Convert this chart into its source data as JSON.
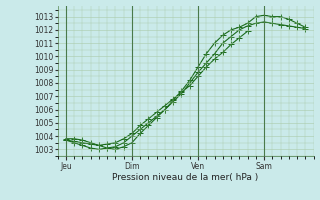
{
  "background_color": "#caeaea",
  "plot_bg_color": "#caeaea",
  "grid_color": "#aacaaa",
  "line_color": "#1a6b1a",
  "marker_color": "#1a6b1a",
  "xlabel": "Pression niveau de la mer( hPa )",
  "ylim": [
    1002.5,
    1013.8
  ],
  "yticks": [
    1003,
    1004,
    1005,
    1006,
    1007,
    1008,
    1009,
    1010,
    1011,
    1012,
    1013
  ],
  "xtick_labels": [
    "Jeu",
    "Dim",
    "Ven",
    "Sam"
  ],
  "xtick_positions": [
    0,
    24,
    48,
    72
  ],
  "xlim": [
    -3,
    90
  ],
  "vline_positions": [
    0,
    24,
    48,
    72
  ],
  "series1_x": [
    0,
    3,
    6,
    9,
    12,
    15,
    18,
    21,
    24,
    27,
    30,
    33,
    36,
    39,
    42,
    45,
    48,
    51,
    54,
    57,
    60,
    63,
    66
  ],
  "series1_y": [
    1003.7,
    1003.6,
    1003.5,
    1003.4,
    1003.3,
    1003.4,
    1003.5,
    1003.8,
    1004.2,
    1004.8,
    1005.3,
    1005.8,
    1006.3,
    1006.8,
    1007.3,
    1007.8,
    1008.5,
    1009.2,
    1009.8,
    1010.3,
    1010.9,
    1011.4,
    1011.9
  ],
  "series2_x": [
    0,
    3,
    6,
    9,
    12,
    15,
    18,
    21,
    24,
    27,
    30,
    33,
    36,
    39,
    42,
    45,
    48,
    51,
    54,
    57,
    60,
    63,
    66,
    69,
    72,
    75,
    78,
    81,
    84,
    87
  ],
  "series2_y": [
    1003.8,
    1003.8,
    1003.7,
    1003.5,
    1003.3,
    1003.1,
    1003.0,
    1003.2,
    1003.5,
    1004.2,
    1004.8,
    1005.4,
    1006.0,
    1006.7,
    1007.4,
    1008.2,
    1009.2,
    1010.2,
    1011.0,
    1011.6,
    1012.0,
    1012.2,
    1012.5,
    1013.0,
    1013.1,
    1013.0,
    1013.0,
    1012.8,
    1012.5,
    1012.2
  ],
  "series3_x": [
    0,
    3,
    6,
    9,
    12,
    15,
    18,
    21,
    24,
    27,
    30,
    33,
    36,
    39,
    42,
    45,
    48,
    51,
    54,
    57,
    60,
    63,
    66,
    69,
    72,
    75,
    78,
    81,
    84,
    87
  ],
  "series3_y": [
    1003.7,
    1003.5,
    1003.3,
    1003.1,
    1003.0,
    1003.1,
    1003.2,
    1003.5,
    1004.0,
    1004.5,
    1005.0,
    1005.5,
    1006.0,
    1006.6,
    1007.2,
    1008.0,
    1008.8,
    1009.5,
    1010.2,
    1011.0,
    1011.5,
    1012.0,
    1012.3,
    1012.5,
    1012.6,
    1012.5,
    1012.4,
    1012.3,
    1012.2,
    1012.1
  ]
}
